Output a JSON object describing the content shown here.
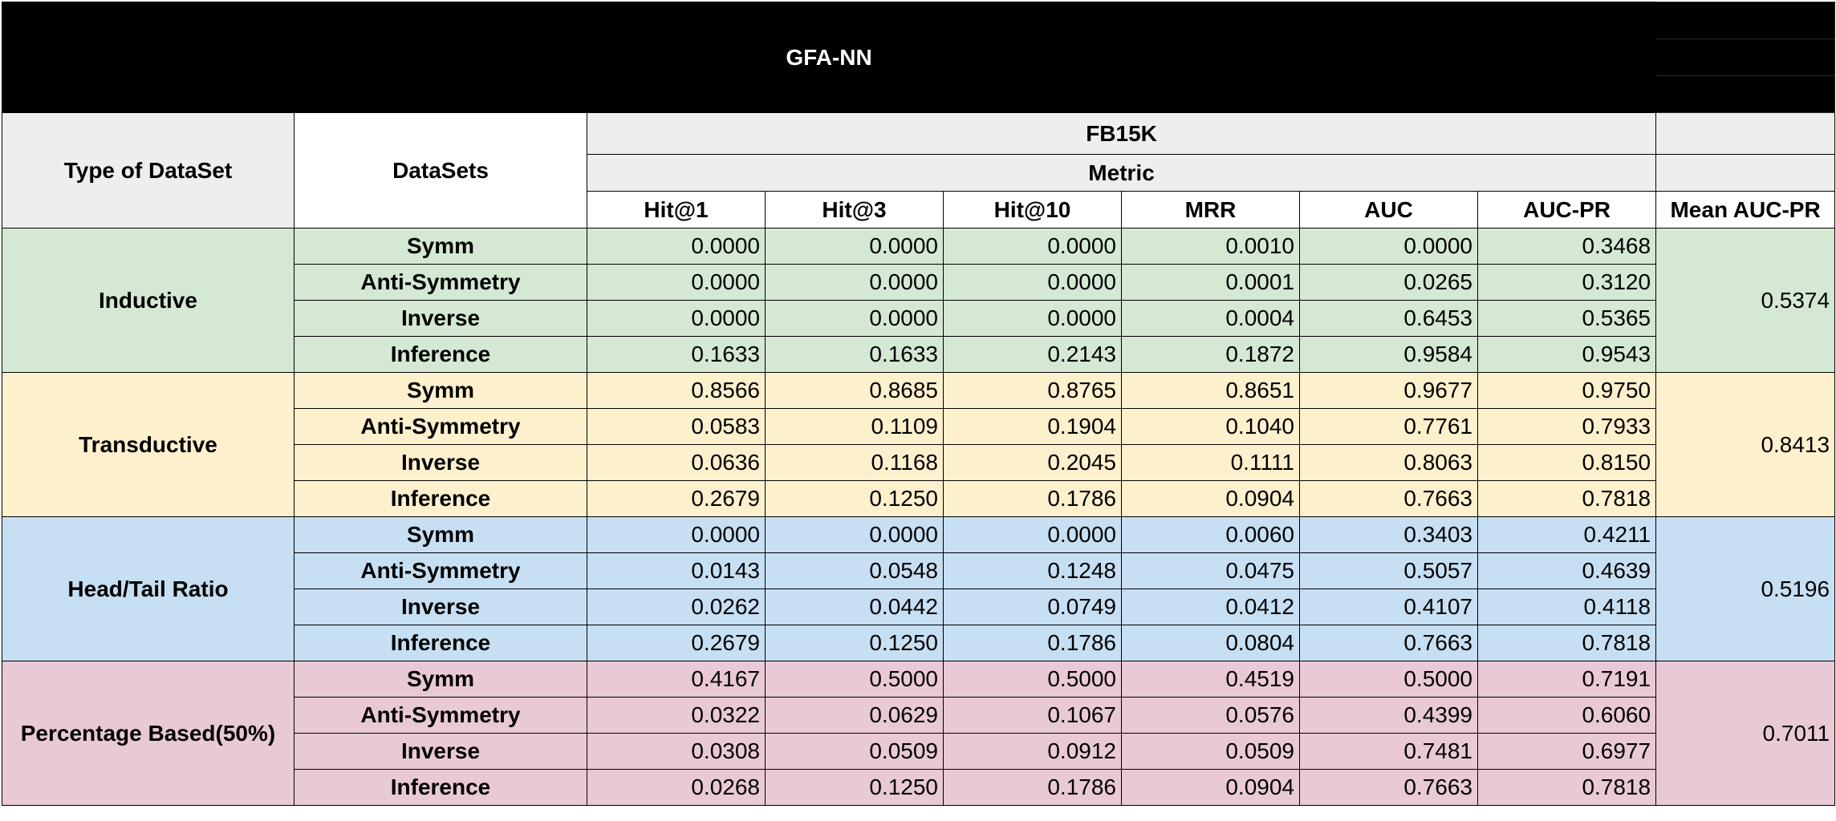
{
  "title": "GFA-NN",
  "header": {
    "type_of_dataset": "Type of DataSet",
    "datasets": "DataSets",
    "dataset_name": "FB15K",
    "metric": "Metric",
    "columns": [
      "Hit@1",
      "Hit@3",
      "Hit@10",
      "MRR",
      "AUC",
      "AUC-PR"
    ],
    "mean_column": "Mean AUC-PR"
  },
  "groups": [
    {
      "name": "Inductive",
      "color": "#d4e8d3",
      "mean": "0.5374",
      "rows": [
        {
          "name": "Symm",
          "values": [
            "0.0000",
            "0.0000",
            "0.0000",
            "0.0010",
            "0.0000",
            "0.3468"
          ]
        },
        {
          "name": "Anti-Symmetry",
          "values": [
            "0.0000",
            "0.0000",
            "0.0000",
            "0.0001",
            "0.0265",
            "0.3120"
          ]
        },
        {
          "name": "Inverse",
          "values": [
            "0.0000",
            "0.0000",
            "0.0000",
            "0.0004",
            "0.6453",
            "0.5365"
          ]
        },
        {
          "name": "Inference",
          "values": [
            "0.1633",
            "0.1633",
            "0.2143",
            "0.1872",
            "0.9584",
            "0.9543"
          ]
        }
      ]
    },
    {
      "name": "Transductive",
      "color": "#fdf0cd",
      "mean": "0.8413",
      "rows": [
        {
          "name": "Symm",
          "values": [
            "0.8566",
            "0.8685",
            "0.8765",
            "0.8651",
            "0.9677",
            "0.9750"
          ]
        },
        {
          "name": "Anti-Symmetry",
          "values": [
            "0.0583",
            "0.1109",
            "0.1904",
            "0.1040",
            "0.7761",
            "0.7933"
          ]
        },
        {
          "name": "Inverse",
          "values": [
            "0.0636",
            "0.1168",
            "0.2045",
            "0.1111",
            "0.8063",
            "0.8150"
          ]
        },
        {
          "name": "Inference",
          "values": [
            "0.2679",
            "0.1250",
            "0.1786",
            "0.0904",
            "0.7663",
            "0.7818"
          ]
        }
      ]
    },
    {
      "name": "Head/Tail Ratio",
      "color": "#c7dff2",
      "mean": "0.5196",
      "rows": [
        {
          "name": "Symm",
          "values": [
            "0.0000",
            "0.0000",
            "0.0000",
            "0.0060",
            "0.3403",
            "0.4211"
          ]
        },
        {
          "name": "Anti-Symmetry",
          "values": [
            "0.0143",
            "0.0548",
            "0.1248",
            "0.0475",
            "0.5057",
            "0.4639"
          ]
        },
        {
          "name": "Inverse",
          "values": [
            "0.0262",
            "0.0442",
            "0.0749",
            "0.0412",
            "0.4107",
            "0.4118"
          ]
        },
        {
          "name": "Inference",
          "values": [
            "0.2679",
            "0.1250",
            "0.1786",
            "0.0804",
            "0.7663",
            "0.7818"
          ]
        }
      ]
    },
    {
      "name": "Percentage Based(50%)",
      "color": "#e9c9d6",
      "mean": "0.7011",
      "rows": [
        {
          "name": "Symm",
          "values": [
            "0.4167",
            "0.5000",
            "0.5000",
            "0.4519",
            "0.5000",
            "0.7191"
          ]
        },
        {
          "name": "Anti-Symmetry",
          "values": [
            "0.0322",
            "0.0629",
            "0.1067",
            "0.0576",
            "0.4399",
            "0.6060"
          ]
        },
        {
          "name": "Inverse",
          "values": [
            "0.0308",
            "0.0509",
            "0.0912",
            "0.0509",
            "0.7481",
            "0.6977"
          ]
        },
        {
          "name": "Inference",
          "values": [
            "0.0268",
            "0.1250",
            "0.1786",
            "0.0904",
            "0.7663",
            "0.7818"
          ]
        }
      ]
    }
  ]
}
